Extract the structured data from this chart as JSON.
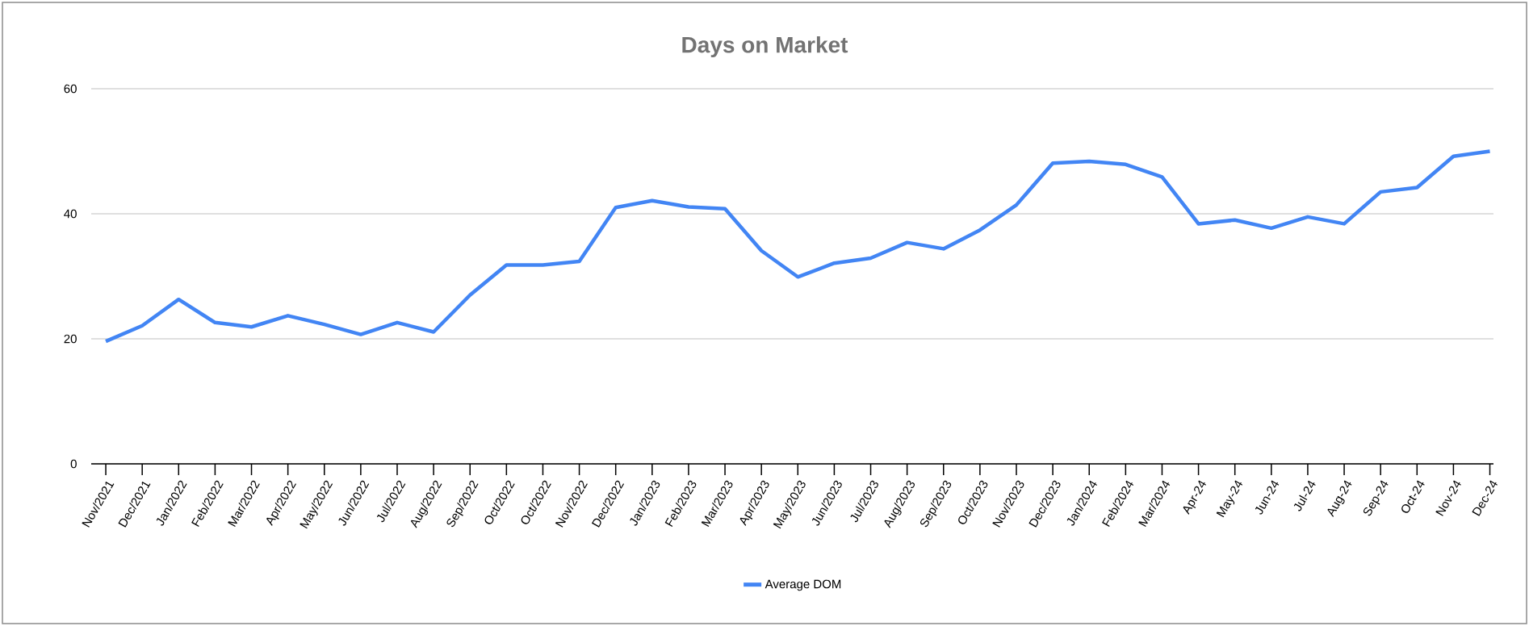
{
  "chart_data": {
    "type": "line",
    "title": "Days on Market",
    "categories": [
      "Nov/2021",
      "Dec/2021",
      "Jan/2022",
      "Feb/2022",
      "Mar/2022",
      "Apr/2022",
      "May/2022",
      "Jun/2022",
      "Jul/2022",
      "Aug/2022",
      "Sep/2022",
      "Oct/2022",
      "Oct/2022",
      "Nov/2022",
      "Dec/2022",
      "Jan/2023",
      "Feb/2023",
      "Mar/2023",
      "Apr/2023",
      "May/2023",
      "Jun/2023",
      "Jul/2023",
      "Aug/2023",
      "Sep/2023",
      "Oct/2023",
      "Nov/2023",
      "Dec/2023",
      "Jan/2024",
      "Feb/2024",
      "Mar/2024",
      "Apr-24",
      "May-24",
      "Jun-24",
      "Jul-24",
      "Aug-24",
      "Sep-24",
      "Oct-24",
      "Nov-24",
      "Dec-24"
    ],
    "series": [
      {
        "name": "Average DOM",
        "color": "#4285f4",
        "values": [
          19.6,
          22.1,
          26.3,
          22.6,
          21.9,
          23.7,
          22.3,
          20.7,
          22.6,
          21.1,
          27,
          31.8,
          31.8,
          32.4,
          41,
          42.1,
          41.1,
          40.8,
          34.1,
          29.9,
          32.1,
          32.9,
          35.4,
          34.4,
          37.4,
          41.4,
          48.1,
          48.4,
          47.9,
          45.9,
          38.4,
          39,
          37.7,
          39.5,
          38.4,
          43.5,
          44.2,
          49.2,
          50
        ]
      }
    ],
    "ylim": [
      0,
      60
    ],
    "yticks": [
      0,
      20,
      40,
      60
    ],
    "grid": "y",
    "legend": "bottom"
  }
}
